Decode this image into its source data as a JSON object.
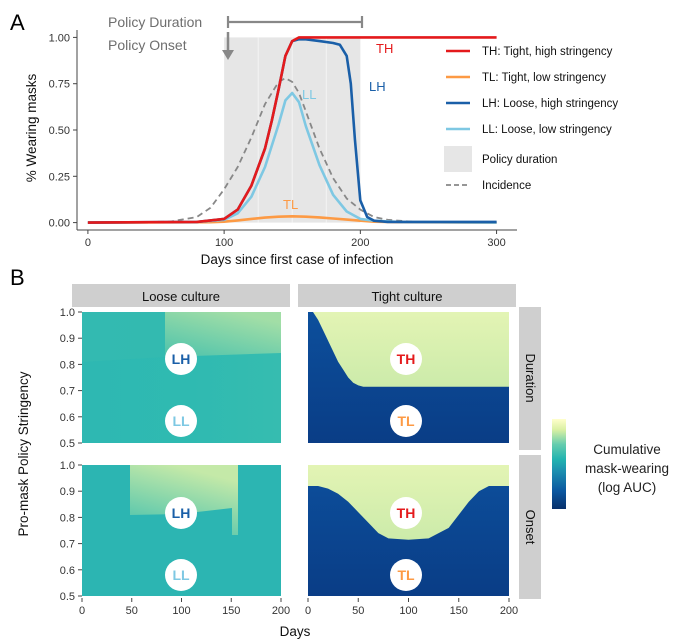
{
  "panel_a": {
    "letter": "A",
    "xlabel": "Days since first case of infection",
    "ylabel": "% Wearing masks",
    "x_ticks": [
      "0",
      "100",
      "200",
      "300"
    ],
    "y_ticks": [
      "0.00",
      "0.25",
      "0.50",
      "0.75",
      "1.00"
    ],
    "annotation_duration": "Policy Duration",
    "annotation_onset": "Policy Onset",
    "curve_labels": {
      "TH": "TH",
      "LH": "LH",
      "LL": "LL",
      "TL": "TL"
    },
    "legend": [
      {
        "key": "TH",
        "label": "TH: Tight, high stringency",
        "color": "#e41a1c",
        "kind": "line"
      },
      {
        "key": "TL",
        "label": "TL: Tight, low stringency",
        "color": "#fd9a44",
        "kind": "line"
      },
      {
        "key": "LH",
        "label": "LH: Loose, high stringency",
        "color": "#1a5fa8",
        "kind": "line"
      },
      {
        "key": "LL",
        "label": "LL: Loose, low stringency",
        "color": "#7ec8e3",
        "kind": "line"
      },
      {
        "key": "PD",
        "label": "Policy duration",
        "color": "#e6e6e6",
        "kind": "box"
      },
      {
        "key": "INC",
        "label": "Incidence",
        "color": "#888888",
        "kind": "dash"
      }
    ]
  },
  "panel_b": {
    "letter": "B",
    "xlabel": "Days",
    "ylabel": "Pro-mask Policy Stringency",
    "col_strips": [
      "Loose culture",
      "Tight culture"
    ],
    "row_strips": [
      "Duration",
      "Onset"
    ],
    "x_ticks": [
      "0",
      "50",
      "100",
      "150",
      "200"
    ],
    "y_ticks": [
      "1.0",
      "0.9",
      "0.8",
      "0.7",
      "0.6",
      "0.5"
    ],
    "badges": {
      "loose": [
        {
          "text": "LH",
          "color": "#1a5fa8"
        },
        {
          "text": "LL",
          "color": "#7ec8e3"
        }
      ],
      "tight": [
        {
          "text": "TH",
          "color": "#e41a1c"
        },
        {
          "text": "TL",
          "color": "#fd9a44"
        }
      ]
    },
    "colorbar_label": [
      "Cumulative",
      "mask-wearing",
      "(log AUC)"
    ]
  },
  "chart_data": [
    {
      "type": "line",
      "title": "",
      "xlabel": "Days since first case of infection",
      "ylabel": "% Wearing masks",
      "xlim": [
        -8,
        315
      ],
      "ylim": [
        -0.04,
        1.04
      ],
      "policy_window": [
        100,
        200
      ],
      "legend_position": "right",
      "grid": false,
      "series": [
        {
          "name": "TH: Tight, high stringency",
          "color": "#e41a1c",
          "style": "solid",
          "x": [
            0,
            80,
            100,
            110,
            120,
            130,
            135,
            140,
            145,
            150,
            155,
            160,
            200,
            300
          ],
          "y": [
            0,
            0.004,
            0.02,
            0.07,
            0.2,
            0.4,
            0.55,
            0.72,
            0.9,
            0.98,
            1.0,
            1.0,
            1.0,
            1.0
          ]
        },
        {
          "name": "TL: Tight, low stringency",
          "color": "#fd9a44",
          "style": "solid",
          "x": [
            0,
            90,
            100,
            110,
            120,
            130,
            140,
            150,
            160,
            170,
            180,
            190,
            200,
            210,
            230,
            300
          ],
          "y": [
            0,
            0.002,
            0.005,
            0.012,
            0.02,
            0.027,
            0.032,
            0.034,
            0.032,
            0.028,
            0.022,
            0.016,
            0.01,
            0.005,
            0.002,
            0.0
          ]
        },
        {
          "name": "LH: Loose, high stringency",
          "color": "#1a5fa8",
          "style": "solid",
          "x": [
            0,
            80,
            100,
            110,
            120,
            130,
            135,
            140,
            145,
            150,
            155,
            160,
            170,
            180,
            185,
            190,
            193,
            196,
            200,
            205,
            210,
            220,
            300
          ],
          "y": [
            0,
            0.004,
            0.02,
            0.07,
            0.2,
            0.4,
            0.55,
            0.72,
            0.9,
            0.98,
            0.99,
            0.99,
            0.98,
            0.97,
            0.96,
            0.9,
            0.75,
            0.45,
            0.12,
            0.03,
            0.01,
            0.004,
            0.004
          ]
        },
        {
          "name": "LL: Loose, low stringency",
          "color": "#7ec8e3",
          "style": "solid",
          "x": [
            0,
            80,
            100,
            110,
            120,
            130,
            140,
            145,
            150,
            155,
            160,
            170,
            180,
            190,
            200,
            210,
            230,
            300
          ],
          "y": [
            0,
            0.003,
            0.015,
            0.05,
            0.14,
            0.3,
            0.53,
            0.66,
            0.7,
            0.65,
            0.52,
            0.31,
            0.15,
            0.06,
            0.02,
            0.01,
            0.003,
            0.0
          ]
        },
        {
          "name": "Incidence",
          "color": "#888888",
          "style": "dashed",
          "x": [
            0,
            60,
            80,
            90,
            100,
            110,
            120,
            130,
            140,
            145,
            150,
            155,
            160,
            170,
            180,
            190,
            200,
            210,
            220,
            240,
            300
          ],
          "y": [
            0,
            0.005,
            0.03,
            0.08,
            0.18,
            0.3,
            0.46,
            0.64,
            0.76,
            0.78,
            0.76,
            0.7,
            0.6,
            0.4,
            0.24,
            0.13,
            0.07,
            0.03,
            0.015,
            0.004,
            0.0
          ]
        }
      ]
    },
    {
      "type": "heatmap",
      "facets": [
        {
          "column": "Loose culture",
          "row": "Duration"
        },
        {
          "column": "Tight culture",
          "row": "Duration"
        },
        {
          "column": "Loose culture",
          "row": "Onset"
        },
        {
          "column": "Tight culture",
          "row": "Onset"
        }
      ],
      "xlabel": "Days",
      "ylabel": "Pro-mask Policy Stringency",
      "xlim": [
        0,
        200
      ],
      "ylim": [
        0.5,
        1.0
      ],
      "tight_duration_boundary": {
        "x": [
          0,
          5,
          10,
          15,
          20,
          25,
          30,
          35,
          40,
          45,
          50,
          55,
          60,
          200
        ],
        "y": [
          1.0,
          1.0,
          0.97,
          0.93,
          0.89,
          0.85,
          0.81,
          0.78,
          0.75,
          0.73,
          0.72,
          0.715,
          0.715,
          0.715
        ]
      },
      "tight_onset_boundary": {
        "x": [
          0,
          10,
          20,
          30,
          40,
          50,
          60,
          70,
          80,
          100,
          120,
          140,
          150,
          160,
          170,
          180,
          190,
          200
        ],
        "y": [
          0.92,
          0.92,
          0.91,
          0.89,
          0.86,
          0.82,
          0.78,
          0.74,
          0.72,
          0.715,
          0.72,
          0.76,
          0.81,
          0.86,
          0.9,
          0.92,
          0.92,
          0.92
        ]
      },
      "colorbar": {
        "label": "Cumulative mask-wearing (log AUC)",
        "colors": [
          "#08306b",
          "#0b57a0",
          "#1c8fb0",
          "#21b3b0",
          "#66cdae",
          "#d9f0a3",
          "#ffffcc"
        ]
      }
    }
  ]
}
